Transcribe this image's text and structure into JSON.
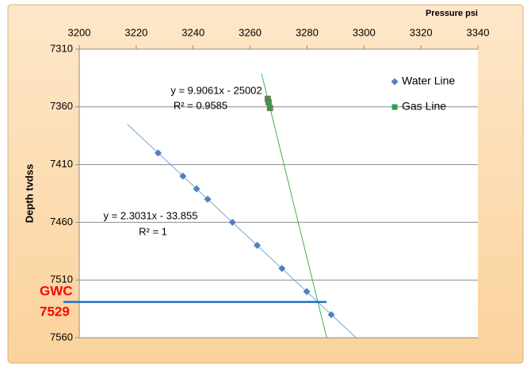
{
  "chart_data": {
    "type": "scatter",
    "x_label": "Pressure psi",
    "y_label": "Depth tvdss",
    "xlim": [
      3200,
      3340
    ],
    "xticks": [
      3200,
      3220,
      3240,
      3260,
      3280,
      3300,
      3320,
      3340
    ],
    "ylim": [
      7310,
      7560
    ],
    "yticks": [
      7310,
      7360,
      7410,
      7460,
      7510,
      7560
    ],
    "y_inverted": true,
    "x_axis_top": true,
    "grid": true,
    "legend": "upper right",
    "series": [
      {
        "name": "Water Line",
        "color": "#4f81bd",
        "marker": "diamond",
        "trendline_color": "#6fa8dc",
        "x": [
          3227.7,
          3236.4,
          3241.2,
          3245.1,
          3253.8,
          3262.5,
          3271.2,
          3279.9,
          3288.5
        ],
        "values": [
          7400,
          7420,
          7431,
          7440,
          7460,
          7480,
          7500,
          7520,
          7540
        ],
        "equation": "y = 2.3031x - 33.855",
        "r2": "R² = 1"
      },
      {
        "name": "Gas Line",
        "color": "#2e9e4a",
        "marker": "square",
        "trendline_color": "#3cb44b",
        "x": [
          3266.2,
          3266.5,
          3267.0
        ],
        "values": [
          7353,
          7356,
          7361
        ],
        "equation": "y = 9.9061x - 25002",
        "r2": "R² = 0.9585"
      }
    ],
    "gwc": {
      "label": "GWC",
      "value": 7529,
      "color": "#1f6fbf",
      "label_color": "#ff0000"
    }
  }
}
